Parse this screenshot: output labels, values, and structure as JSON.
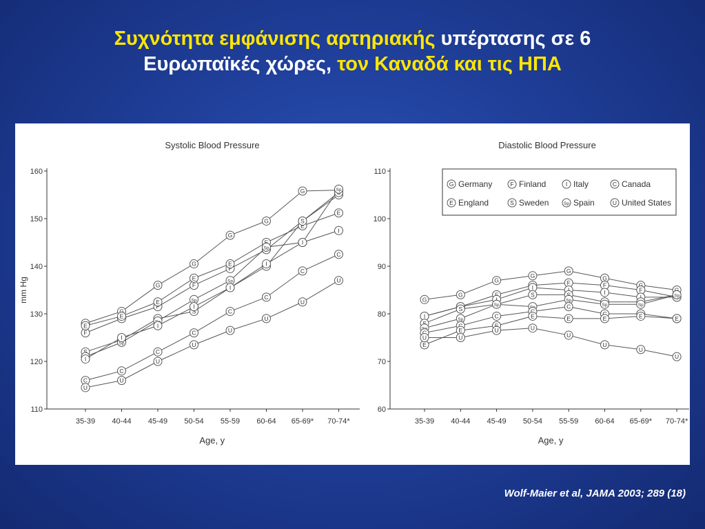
{
  "slide": {
    "title_line1_part1": "Συχνότητα εμφάνισης αρτηριακής",
    "title_line1_part2": " υπέρτασης σε 6",
    "title_line2_part1": "Ευρωπαϊκές χώρες,",
    "title_line2_part2": " τον Καναδά και τις ΗΠΑ",
    "citation": "Wolf-Maier et  al, JAMA 2003; 289 (18)"
  },
  "colors": {
    "title_yellow": "#ffe600",
    "title_white": "#ffffff",
    "background": "#1f3f9a",
    "line": "#555555"
  },
  "legend": [
    {
      "code": "G",
      "name": "Germany"
    },
    {
      "code": "F",
      "name": "Finland"
    },
    {
      "code": "I",
      "name": "Italy"
    },
    {
      "code": "C",
      "name": "Canada"
    },
    {
      "code": "E",
      "name": "England"
    },
    {
      "code": "S",
      "name": "Sweden"
    },
    {
      "code": "Sp",
      "name": "Spain"
    },
    {
      "code": "U",
      "name": "United States"
    }
  ],
  "chart_data": [
    {
      "type": "line",
      "title": "Systolic Blood Pressure",
      "xlabel": "Age, y",
      "ylabel": "mm Hg",
      "ylim": [
        110,
        160
      ],
      "yticks": [
        110,
        120,
        130,
        140,
        150,
        160
      ],
      "categories": [
        "35-39",
        "40-44",
        "45-49",
        "50-54",
        "55-59",
        "60-64",
        "65-69*",
        "70-74*"
      ],
      "series": [
        {
          "code": "G",
          "name": "Germany",
          "values": [
            128,
            130.5,
            136,
            140.5,
            146.5,
            149.5,
            155.8,
            156
          ]
        },
        {
          "code": "F",
          "name": "Finland",
          "values": [
            126,
            129,
            131.5,
            136,
            139.5,
            143.5,
            149.5,
            155
          ]
        },
        {
          "code": "E",
          "name": "England",
          "values": [
            127.5,
            129.5,
            132.5,
            137.5,
            140.5,
            145,
            148.5,
            151.2
          ]
        },
        {
          "code": "S",
          "name": "Sweden",
          "values": [
            122,
            124.5,
            129,
            130.5,
            135.5,
            140,
            149.5,
            155.5
          ]
        },
        {
          "code": "Sp",
          "name": "Spain",
          "values": [
            121,
            124,
            128.5,
            133,
            137,
            144,
            145,
            156.2
          ]
        },
        {
          "code": "I",
          "name": "Italy",
          "values": [
            120.5,
            125,
            127.5,
            131.5,
            135.5,
            140.5,
            145,
            147.5
          ]
        },
        {
          "code": "C",
          "name": "Canada",
          "values": [
            116,
            118,
            122,
            126,
            130.5,
            133.5,
            139,
            142.5
          ]
        },
        {
          "code": "U",
          "name": "United States",
          "values": [
            114.5,
            116,
            120,
            123.5,
            126.5,
            129,
            132.5,
            137
          ]
        }
      ]
    },
    {
      "type": "line",
      "title": "Diastolic Blood Pressure",
      "xlabel": "Age, y",
      "ylabel": "",
      "ylim": [
        60,
        110
      ],
      "yticks": [
        60,
        70,
        80,
        90,
        100,
        110
      ],
      "categories": [
        "35-39",
        "40-44",
        "45-49",
        "50-54",
        "55-59",
        "60-64",
        "65-69*",
        "70-74*"
      ],
      "series": [
        {
          "code": "G",
          "name": "Germany",
          "values": [
            83,
            84,
            87,
            88,
            89,
            87.5,
            86,
            85
          ]
        },
        {
          "code": "F",
          "name": "Finland",
          "values": [
            79.5,
            81.5,
            84,
            86,
            86.5,
            86,
            85,
            83.5
          ]
        },
        {
          "code": "I",
          "name": "Italy",
          "values": [
            79.5,
            81.5,
            83,
            85.5,
            85,
            84.5,
            83.5,
            83.5
          ]
        },
        {
          "code": "S",
          "name": "Sweden",
          "values": [
            78,
            81,
            82,
            84,
            84,
            82.5,
            82.5,
            84
          ]
        },
        {
          "code": "Sp",
          "name": "Spain",
          "values": [
            77,
            79,
            82,
            81.5,
            83,
            82,
            82,
            84
          ]
        },
        {
          "code": "C",
          "name": "Canada",
          "values": [
            76,
            77.5,
            79.5,
            80.5,
            81.5,
            80,
            80,
            79
          ]
        },
        {
          "code": "E",
          "name": "England",
          "values": [
            73.5,
            76.5,
            77.5,
            79.5,
            79,
            79,
            79.5,
            79
          ]
        },
        {
          "code": "U",
          "name": "United States",
          "values": [
            75,
            75,
            76.5,
            77,
            75.5,
            73.5,
            72.5,
            71
          ]
        }
      ]
    }
  ]
}
